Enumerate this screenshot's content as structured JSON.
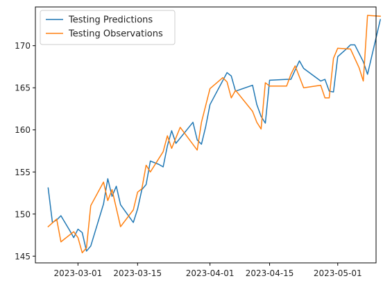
{
  "chart_data": {
    "type": "line",
    "title": "",
    "xlabel": "",
    "ylabel": "",
    "x_ticks": [
      "2023-03-01",
      "2023-03-15",
      "2023-04-01",
      "2023-04-15",
      "2023-05-01"
    ],
    "y_ticks": [
      145,
      150,
      155,
      160,
      165,
      170
    ],
    "xlim": [
      "2023-02-19",
      "2023-05-10"
    ],
    "ylim": [
      144.2,
      174.6
    ],
    "grid": false,
    "legend_position": "top-left",
    "series": [
      {
        "name": "Testing Predictions",
        "color": "#1f77b4",
        "points": [
          [
            "2023-02-22",
            153.1
          ],
          [
            "2023-02-23",
            149.0
          ],
          [
            "2023-02-24",
            149.3
          ],
          [
            "2023-02-25",
            149.8
          ],
          [
            "2023-02-27",
            148.1
          ],
          [
            "2023-02-28",
            147.2
          ],
          [
            "2023-03-01",
            148.2
          ],
          [
            "2023-03-02",
            147.8
          ],
          [
            "2023-03-03",
            145.6
          ],
          [
            "2023-03-04",
            146.2
          ],
          [
            "2023-03-07",
            151.2
          ],
          [
            "2023-03-08",
            154.2
          ],
          [
            "2023-03-09",
            152.1
          ],
          [
            "2023-03-10",
            153.3
          ],
          [
            "2023-03-11",
            151.1
          ],
          [
            "2023-03-14",
            149.0
          ],
          [
            "2023-03-15",
            150.6
          ],
          [
            "2023-03-16",
            152.9
          ],
          [
            "2023-03-17",
            153.5
          ],
          [
            "2023-03-18",
            156.3
          ],
          [
            "2023-03-20",
            155.9
          ],
          [
            "2023-03-21",
            155.6
          ],
          [
            "2023-03-22",
            158.1
          ],
          [
            "2023-03-23",
            159.9
          ],
          [
            "2023-03-24",
            158.4
          ],
          [
            "2023-03-28",
            160.9
          ],
          [
            "2023-03-29",
            158.8
          ],
          [
            "2023-03-30",
            158.3
          ],
          [
            "2023-03-31",
            160.4
          ],
          [
            "2023-04-01",
            163.0
          ],
          [
            "2023-04-05",
            166.8
          ],
          [
            "2023-04-06",
            166.4
          ],
          [
            "2023-04-07",
            164.6
          ],
          [
            "2023-04-11",
            165.3
          ],
          [
            "2023-04-12",
            163.0
          ],
          [
            "2023-04-13",
            161.6
          ],
          [
            "2023-04-14",
            160.8
          ],
          [
            "2023-04-15",
            165.9
          ],
          [
            "2023-04-19",
            166.0
          ],
          [
            "2023-04-20",
            166.0
          ],
          [
            "2023-04-22",
            168.2
          ],
          [
            "2023-04-23",
            167.3
          ],
          [
            "2023-04-27",
            165.8
          ],
          [
            "2023-04-28",
            166.0
          ],
          [
            "2023-04-29",
            164.6
          ],
          [
            "2023-04-30",
            164.5
          ],
          [
            "2023-05-01",
            168.7
          ],
          [
            "2023-05-03",
            169.6
          ],
          [
            "2023-05-04",
            170.1
          ],
          [
            "2023-05-05",
            170.1
          ],
          [
            "2023-05-07",
            168.1
          ],
          [
            "2023-05-08",
            166.6
          ],
          [
            "2023-05-11",
            173.1
          ]
        ]
      },
      {
        "name": "Testing Observations",
        "color": "#ff7f0e",
        "points": [
          [
            "2023-02-22",
            148.5
          ],
          [
            "2023-02-24",
            149.4
          ],
          [
            "2023-02-25",
            146.7
          ],
          [
            "2023-02-28",
            147.9
          ],
          [
            "2023-03-01",
            147.2
          ],
          [
            "2023-03-02",
            145.4
          ],
          [
            "2023-03-03",
            146.0
          ],
          [
            "2023-03-04",
            151.0
          ],
          [
            "2023-03-07",
            153.8
          ],
          [
            "2023-03-08",
            151.6
          ],
          [
            "2023-03-09",
            152.9
          ],
          [
            "2023-03-11",
            148.5
          ],
          [
            "2023-03-14",
            150.5
          ],
          [
            "2023-03-15",
            152.6
          ],
          [
            "2023-03-16",
            153.0
          ],
          [
            "2023-03-17",
            155.8
          ],
          [
            "2023-03-18",
            155.0
          ],
          [
            "2023-03-21",
            157.4
          ],
          [
            "2023-03-22",
            159.3
          ],
          [
            "2023-03-23",
            157.8
          ],
          [
            "2023-03-25",
            160.3
          ],
          [
            "2023-03-29",
            157.6
          ],
          [
            "2023-03-30",
            160.9
          ],
          [
            "2023-04-01",
            164.9
          ],
          [
            "2023-04-04",
            166.2
          ],
          [
            "2023-04-05",
            165.7
          ],
          [
            "2023-04-06",
            163.8
          ],
          [
            "2023-04-07",
            164.7
          ],
          [
            "2023-04-11",
            162.2
          ],
          [
            "2023-04-12",
            160.9
          ],
          [
            "2023-04-13",
            160.1
          ],
          [
            "2023-04-14",
            165.6
          ],
          [
            "2023-04-15",
            165.2
          ],
          [
            "2023-04-19",
            165.2
          ],
          [
            "2023-04-20",
            166.6
          ],
          [
            "2023-04-21",
            167.6
          ],
          [
            "2023-04-23",
            165.0
          ],
          [
            "2023-04-27",
            165.3
          ],
          [
            "2023-04-28",
            163.8
          ],
          [
            "2023-04-29",
            163.8
          ],
          [
            "2023-04-30",
            168.5
          ],
          [
            "2023-05-01",
            169.7
          ],
          [
            "2023-05-04",
            169.6
          ],
          [
            "2023-05-06",
            167.4
          ],
          [
            "2023-05-07",
            165.8
          ],
          [
            "2023-05-08",
            173.6
          ],
          [
            "2023-05-11",
            173.5
          ]
        ]
      }
    ]
  }
}
